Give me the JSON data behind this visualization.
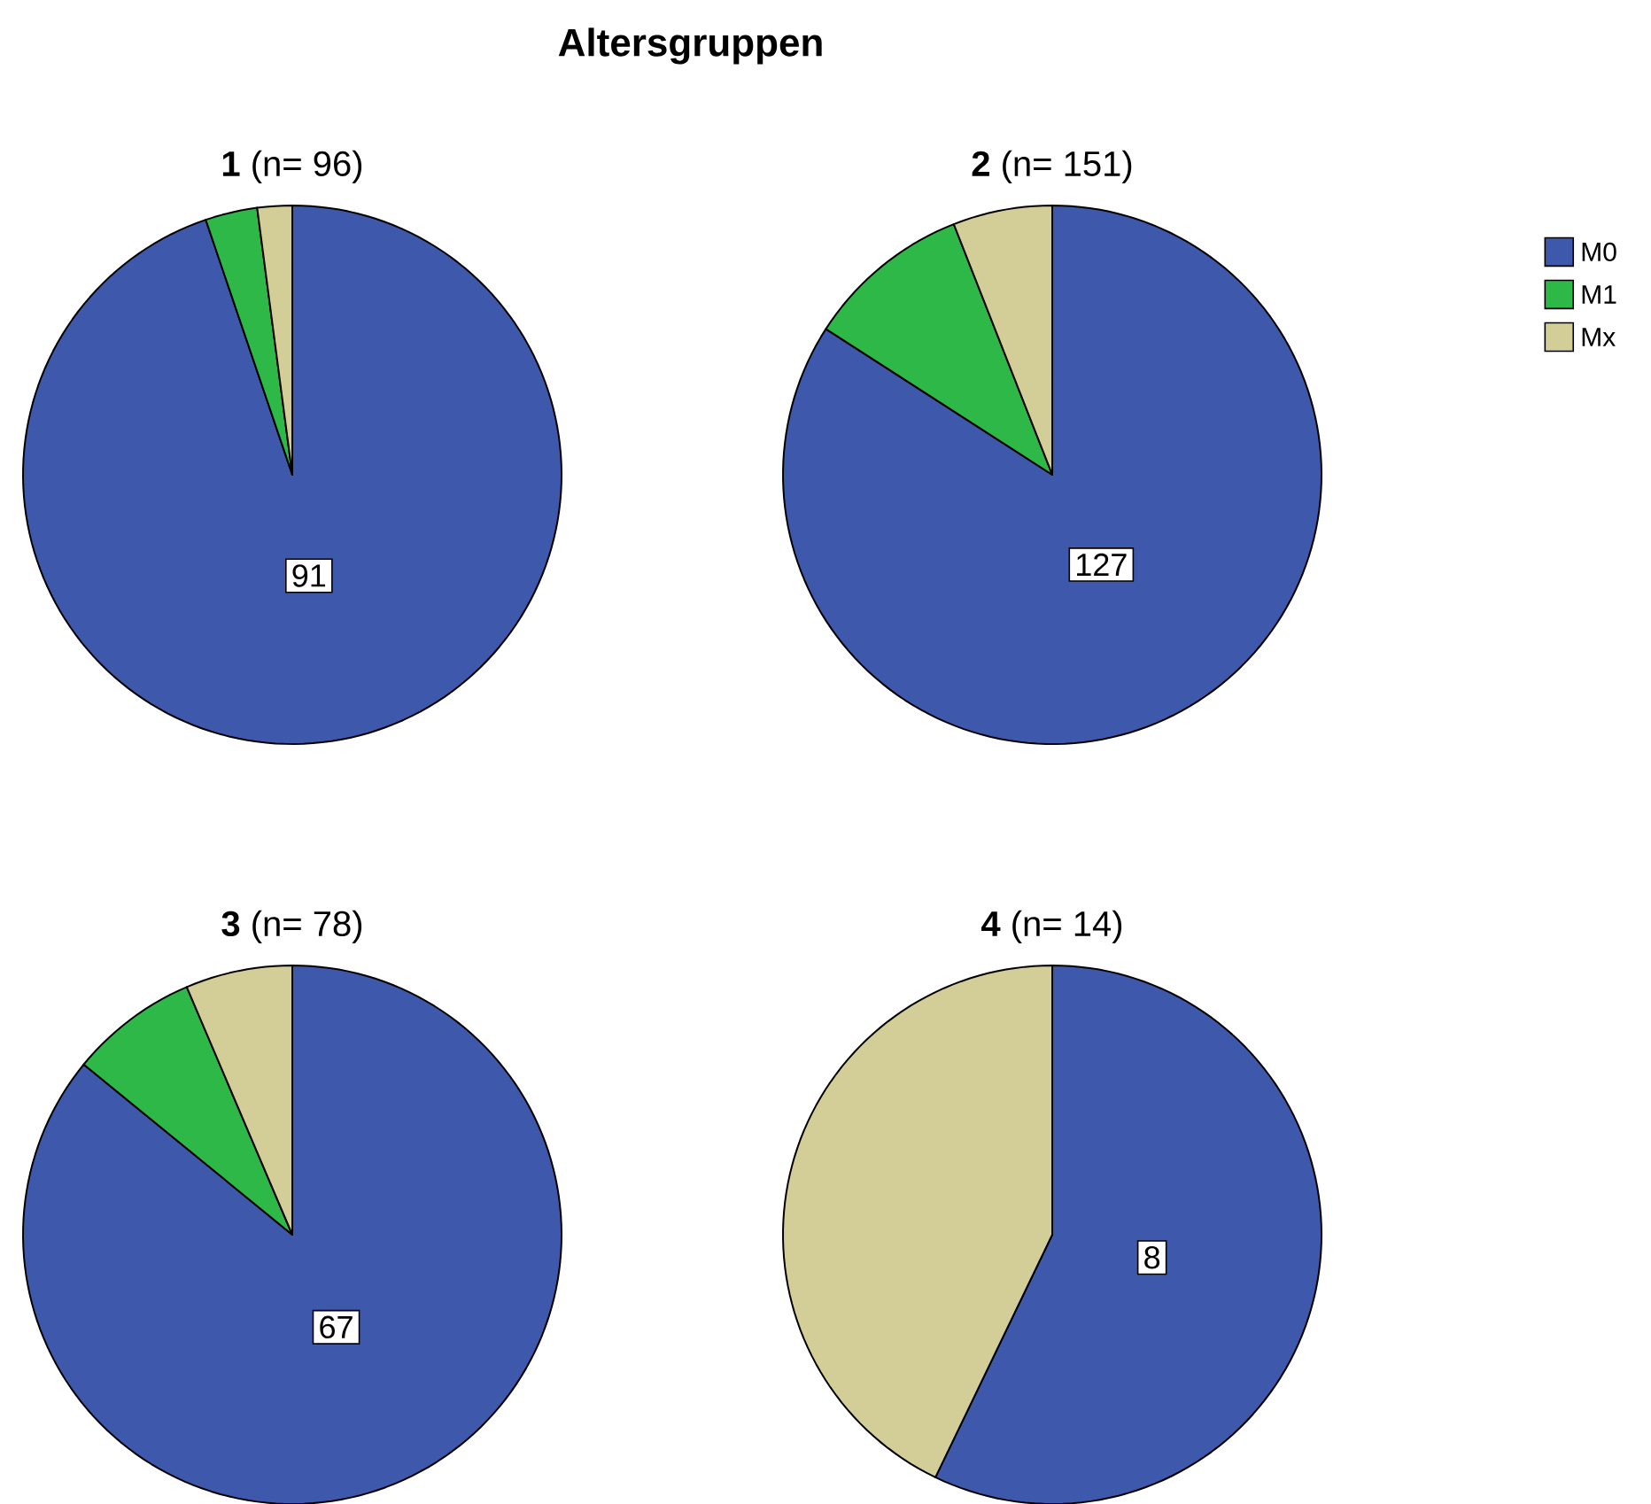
{
  "chart_data": [
    {
      "type": "other",
      "title": "Altersgruppen"
    },
    {
      "type": "pie",
      "title": "**1** (n= 96)",
      "categories": [
        null,
        null,
        null
      ],
      "values": [
        91,
        3,
        2
      ],
      "colors": [
        "#3e58ac",
        "#2eb848",
        "#d3ce97"
      ],
      "value_labels": [
        "91",
        null,
        null
      ]
    },
    {
      "type": "pie",
      "title": "**2** (n= 151)",
      "categories": [
        "M0",
        "M1",
        "Mx"
      ],
      "values": [
        127,
        15,
        9
      ],
      "colors": [
        "#3e58ac",
        "#2eb848",
        "#d3ce97"
      ],
      "value_labels": [
        "127",
        null,
        null
      ],
      "legend": "right"
    },
    {
      "type": "pie",
      "title": "**3** (n= 78)",
      "categories": [
        null,
        null,
        null
      ],
      "values": [
        67,
        6,
        5
      ],
      "colors": [
        "#3e58ac",
        "#2eb848",
        "#d3ce97"
      ],
      "value_labels": [
        "67",
        null,
        null
      ]
    },
    {
      "type": "pie",
      "title": "**4** (n= 14)",
      "categories": [
        null,
        null,
        null
      ],
      "values": [
        8,
        0,
        6
      ],
      "colors": [
        "#3e58ac",
        "#2eb848",
        "#d3ce97"
      ],
      "value_labels": [
        "8",
        null,
        null
      ]
    }
  ]
}
